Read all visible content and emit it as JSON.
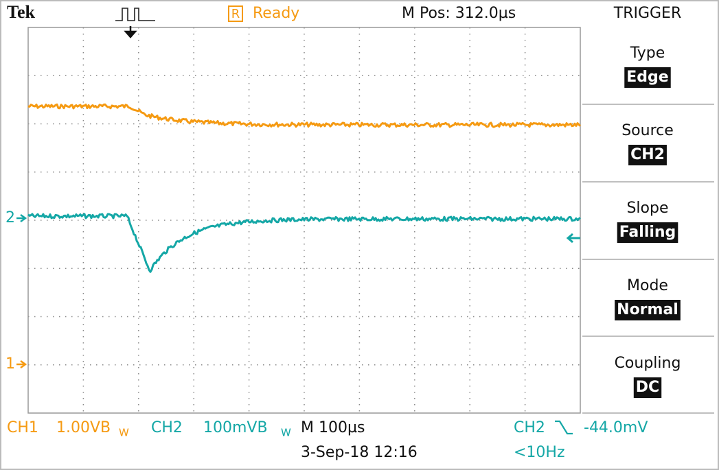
{
  "header": {
    "brand": "Tek",
    "status_icon": "R",
    "status": "Ready",
    "position": "M Pos: 312.0µs",
    "menu_title": "TRIGGER"
  },
  "menu": [
    {
      "label": "Type",
      "value": "Edge"
    },
    {
      "label": "Source",
      "value": "CH2"
    },
    {
      "label": "Slope",
      "value": "Falling"
    },
    {
      "label": "Mode",
      "value": "Normal"
    },
    {
      "label": "Coupling",
      "value": "DC"
    }
  ],
  "markers": {
    "ch2": "2",
    "ch1": "1"
  },
  "footer": {
    "ch1": "CH1",
    "ch1_scale": "1.00VB",
    "ch1_bw": "W",
    "ch2": "CH2",
    "ch2_scale": "100mVB",
    "ch2_bw": "W",
    "timebase": "M 100µs",
    "trigger_source": "CH2",
    "trigger_level": "-44.0mV",
    "date": "3-Sep-18 12:16",
    "frequency": "<10Hz"
  }
}
